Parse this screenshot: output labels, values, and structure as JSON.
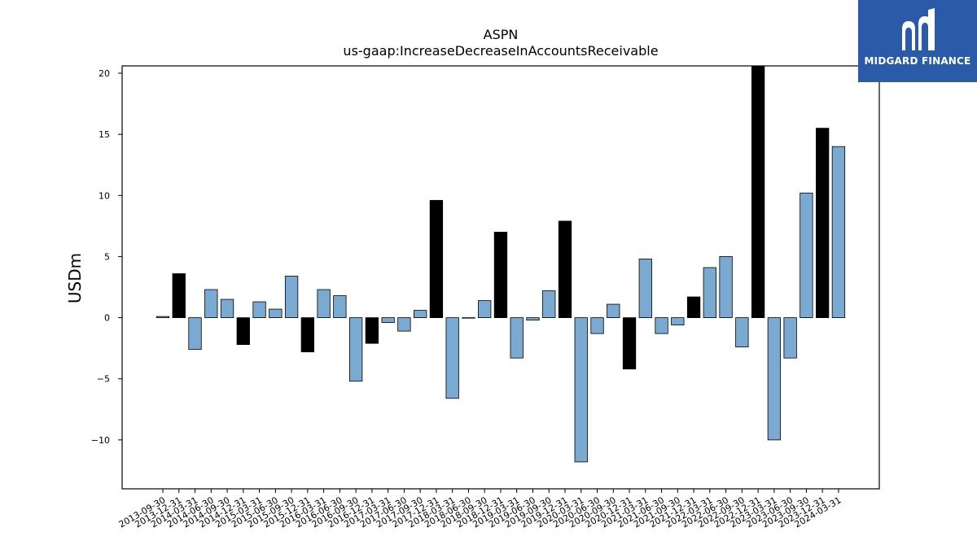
{
  "brand": {
    "name": "MIDGARD FINANCE",
    "color": "#2a5aa8",
    "icon": "midgard-logo-icon"
  },
  "chart_data": {
    "type": "bar",
    "title": "ASPN",
    "subtitle": "us-gaap:IncreaseDecreaseInAccountsReceivable",
    "xlabel": "",
    "ylabel": "USDm",
    "ylim": [
      -14,
      20.6
    ],
    "yticks": [
      -10,
      -5,
      0,
      5,
      10,
      15,
      20
    ],
    "grid": false,
    "colors": {
      "quarter": "#7aaad2",
      "year_end": "#000000",
      "edge": "#000000"
    },
    "categories": [
      "2013-09-30",
      "2013-12-31",
      "2014-03-31",
      "2014-06-30",
      "2014-09-30",
      "2014-12-31",
      "2015-03-31",
      "2015-06-30",
      "2015-09-30",
      "2015-12-31",
      "2016-03-31",
      "2016-06-30",
      "2016-09-30",
      "2016-12-31",
      "2017-03-31",
      "2017-06-30",
      "2017-09-30",
      "2017-12-31",
      "2018-03-31",
      "2018-06-30",
      "2018-09-30",
      "2018-12-31",
      "2019-03-31",
      "2019-06-30",
      "2019-09-30",
      "2019-12-31",
      "2020-03-31",
      "2020-06-30",
      "2020-09-30",
      "2020-12-31",
      "2021-03-31",
      "2021-06-30",
      "2021-09-30",
      "2021-12-31",
      "2022-03-31",
      "2022-06-30",
      "2022-09-30",
      "2022-12-31",
      "2023-03-31",
      "2023-06-30",
      "2023-09-30",
      "2023-12-31",
      "2024-03-31"
    ],
    "values": [
      0.1,
      3.6,
      -2.6,
      2.3,
      1.5,
      -2.2,
      1.3,
      0.7,
      3.4,
      -2.8,
      2.3,
      1.8,
      -5.2,
      -2.1,
      -0.4,
      -1.1,
      0.6,
      9.6,
      -6.6,
      0.0,
      1.4,
      7.0,
      -3.3,
      -0.2,
      2.2,
      7.9,
      -11.8,
      -1.3,
      1.1,
      -4.2,
      4.8,
      -1.3,
      -0.6,
      1.7,
      4.1,
      5.0,
      -2.4,
      20.6,
      -10.0,
      -3.3,
      10.2,
      15.5,
      14.0
    ],
    "year_end": [
      false,
      true,
      false,
      false,
      false,
      true,
      false,
      false,
      false,
      true,
      false,
      false,
      false,
      true,
      false,
      false,
      false,
      true,
      false,
      false,
      false,
      true,
      false,
      false,
      false,
      true,
      false,
      false,
      false,
      true,
      false,
      false,
      false,
      true,
      false,
      false,
      false,
      true,
      false,
      false,
      false,
      true,
      false
    ]
  }
}
